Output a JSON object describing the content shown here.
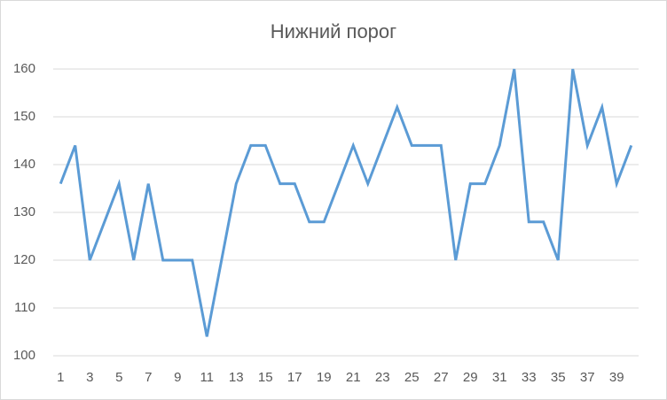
{
  "chart_data": {
    "type": "line",
    "title": "Нижний порог",
    "categories": [
      1,
      null,
      3,
      null,
      5,
      null,
      7,
      null,
      9,
      null,
      11,
      null,
      13,
      null,
      15,
      null,
      17,
      null,
      19,
      null,
      21,
      null,
      23,
      null,
      25,
      null,
      27,
      null,
      29,
      null,
      31,
      null,
      33,
      null,
      35,
      null,
      37,
      null,
      39,
      null
    ],
    "series": [
      {
        "name": "Нижний порог",
        "color": "#5b9bd5",
        "values": [
          136,
          144,
          120,
          128,
          136,
          120,
          136,
          120,
          120,
          120,
          104,
          120,
          136,
          144,
          144,
          136,
          136,
          128,
          128,
          136,
          144,
          136,
          144,
          152,
          144,
          144,
          144,
          120,
          136,
          136,
          144,
          160,
          128,
          128,
          120,
          160,
          144,
          152,
          136,
          144
        ]
      }
    ],
    "ylim": [
      100,
      160
    ],
    "yticks": [
      100,
      110,
      120,
      130,
      140,
      150,
      160
    ],
    "grid": true
  }
}
